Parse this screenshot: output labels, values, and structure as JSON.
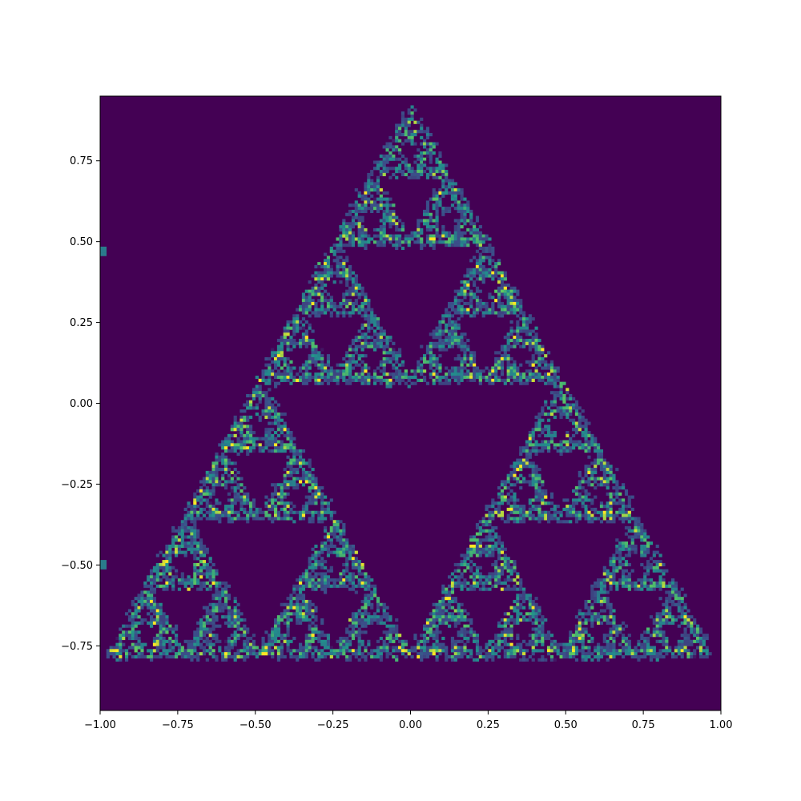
{
  "chart_data": {
    "type": "heatmap",
    "title": "",
    "xlabel": "",
    "ylabel": "",
    "xlim": [
      -1.0,
      1.0
    ],
    "ylim": [
      -0.95,
      0.95
    ],
    "x_ticks": [
      -1.0,
      -0.75,
      -0.5,
      -0.25,
      0.0,
      0.25,
      0.5,
      0.75,
      1.0
    ],
    "x_tick_labels": [
      "−1.00",
      "−0.75",
      "−0.50",
      "−0.25",
      "0.00",
      "0.25",
      "0.50",
      "0.75",
      "1.00"
    ],
    "y_ticks": [
      0.75,
      0.5,
      0.25,
      0.0,
      -0.25,
      -0.5,
      -0.75
    ],
    "y_tick_labels": [
      "0.75",
      "0.50",
      "0.25",
      "0.00",
      "−0.25",
      "−0.50",
      "−0.75"
    ],
    "colormap": "viridis",
    "colors": {
      "low": "#440154",
      "mid": "#21918c",
      "high": "#fde725"
    },
    "grid": false,
    "legend": "none",
    "pattern": "sierpinski-triangle",
    "triangle_vertices": [
      [
        -0.97,
        -0.78
      ],
      [
        0.97,
        -0.78
      ],
      [
        0.0,
        0.92
      ]
    ],
    "hot_spots": [
      {
        "x": 0.06,
        "y": 0.51
      },
      {
        "x": -0.23,
        "y": -0.46
      },
      {
        "x": 0.19,
        "y": -0.45
      },
      {
        "x": -0.37,
        "y": -0.64
      },
      {
        "x": 0.31,
        "y": 0.33
      },
      {
        "x": -0.48,
        "y": -0.76
      },
      {
        "x": -0.08,
        "y": 0.06
      },
      {
        "x": -1.0,
        "y": 0.47
      },
      {
        "x": -1.0,
        "y": -0.5
      }
    ]
  }
}
